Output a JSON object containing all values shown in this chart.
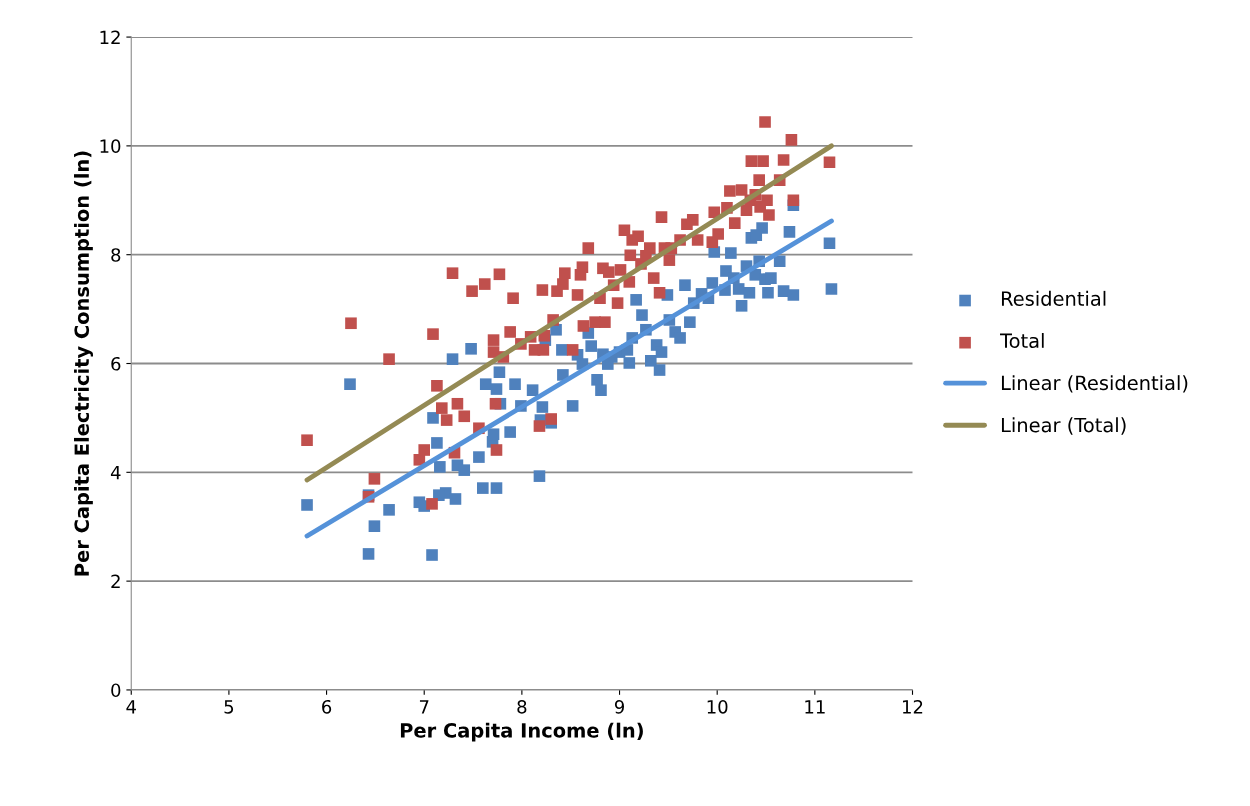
{
  "chart_data": {
    "type": "scatter",
    "xlabel": "Per Capita Income (ln)",
    "ylabel": "Per Capita Electricity Consumption (ln)",
    "xlim": [
      4,
      12
    ],
    "xticks": [
      4,
      5,
      6,
      7,
      8,
      9,
      10,
      11,
      12
    ],
    "ylim": [
      0,
      12
    ],
    "yticks": [
      0,
      2,
      4,
      6,
      8,
      10,
      12
    ],
    "grid": "y",
    "legend": "right",
    "marker": "square",
    "series": [
      {
        "name": "Residential",
        "color": "#4f81bd",
        "x": [
          5.8,
          6.24,
          6.43,
          6.43,
          6.49,
          6.64,
          6.95,
          7.0,
          7.08,
          7.09,
          7.13,
          7.16,
          7.22,
          7.15,
          7.29,
          7.32,
          7.34,
          7.41,
          7.48,
          7.56,
          7.6,
          7.63,
          7.7,
          7.71,
          7.74,
          7.74,
          7.77,
          7.78,
          7.88,
          7.93,
          7.99,
          8.11,
          8.18,
          8.19,
          8.21,
          8.24,
          8.3,
          8.35,
          8.41,
          8.42,
          8.52,
          8.57,
          8.62,
          8.68,
          8.71,
          8.77,
          8.81,
          8.83,
          8.88,
          8.92,
          9.0,
          9.08,
          9.1,
          9.13,
          9.17,
          9.23,
          9.27,
          9.32,
          9.38,
          9.41,
          9.43,
          9.49,
          9.51,
          9.57,
          9.62,
          9.67,
          9.72,
          9.76,
          9.84,
          9.91,
          9.95,
          9.97,
          10.08,
          10.09,
          10.14,
          10.17,
          10.22,
          10.25,
          10.3,
          10.33,
          10.35,
          10.39,
          10.43,
          10.46,
          10.49,
          10.52,
          10.55,
          10.64,
          10.68,
          10.74,
          10.78,
          10.78,
          11.15,
          11.17,
          10.4
        ],
        "values": [
          3.4,
          5.62,
          2.5,
          3.58,
          3.01,
          3.31,
          3.45,
          3.38,
          2.48,
          5.0,
          4.54,
          4.1,
          3.62,
          3.58,
          6.08,
          3.51,
          4.13,
          4.04,
          6.27,
          4.28,
          3.71,
          5.62,
          4.56,
          4.7,
          5.53,
          3.71,
          5.84,
          5.26,
          4.74,
          5.62,
          5.22,
          5.51,
          3.93,
          4.96,
          5.2,
          6.43,
          4.91,
          6.62,
          6.25,
          5.79,
          5.22,
          6.16,
          5.99,
          6.56,
          6.32,
          5.7,
          5.51,
          6.17,
          5.99,
          6.12,
          6.21,
          6.25,
          6.01,
          6.47,
          7.17,
          6.89,
          6.62,
          6.05,
          6.34,
          5.88,
          6.21,
          7.26,
          6.8,
          6.58,
          6.47,
          7.44,
          6.76,
          7.11,
          7.28,
          7.2,
          7.48,
          8.05,
          7.35,
          7.7,
          8.03,
          7.57,
          7.37,
          7.06,
          7.79,
          7.3,
          8.31,
          7.63,
          7.88,
          8.49,
          7.55,
          7.3,
          7.57,
          7.88,
          7.33,
          8.42,
          7.26,
          8.91,
          8.21,
          7.37,
          8.36
        ]
      },
      {
        "name": "Total",
        "color": "#c0504d",
        "x": [
          5.8,
          6.25,
          6.49,
          6.43,
          6.64,
          6.95,
          7.0,
          7.09,
          7.08,
          7.13,
          7.18,
          7.23,
          7.29,
          7.31,
          7.34,
          7.41,
          7.49,
          7.56,
          7.62,
          7.71,
          7.71,
          7.73,
          7.74,
          7.77,
          7.81,
          7.88,
          7.91,
          7.99,
          8.09,
          8.13,
          8.18,
          8.21,
          8.22,
          8.23,
          8.3,
          8.32,
          8.36,
          8.42,
          8.44,
          8.52,
          8.57,
          8.6,
          8.62,
          8.63,
          8.68,
          8.75,
          8.8,
          8.83,
          8.85,
          8.89,
          8.94,
          8.98,
          9.01,
          9.05,
          9.1,
          9.11,
          9.13,
          9.19,
          9.22,
          9.27,
          9.31,
          9.35,
          9.41,
          9.43,
          9.46,
          9.51,
          9.53,
          9.62,
          9.69,
          9.75,
          9.8,
          9.95,
          9.97,
          10.01,
          10.1,
          10.13,
          10.18,
          10.25,
          10.3,
          10.35,
          10.39,
          10.43,
          10.47,
          10.49,
          10.51,
          10.53,
          10.64,
          10.68,
          10.76,
          10.78,
          11.15,
          10.34,
          10.44
        ],
        "values": [
          4.59,
          6.74,
          3.88,
          3.55,
          6.08,
          4.23,
          4.41,
          6.54,
          3.42,
          5.59,
          5.18,
          4.96,
          7.66,
          4.36,
          5.26,
          5.03,
          7.33,
          4.81,
          7.46,
          6.43,
          6.21,
          5.26,
          4.41,
          7.64,
          6.12,
          6.58,
          7.2,
          6.36,
          6.49,
          6.25,
          4.85,
          7.35,
          6.25,
          6.51,
          4.98,
          6.8,
          7.33,
          7.46,
          7.66,
          6.25,
          7.26,
          7.63,
          7.77,
          6.69,
          8.12,
          6.76,
          7.2,
          7.75,
          6.76,
          7.68,
          7.44,
          7.11,
          7.72,
          8.45,
          7.5,
          7.99,
          8.27,
          8.34,
          7.83,
          7.98,
          8.12,
          7.57,
          7.3,
          8.69,
          8.12,
          7.9,
          8.12,
          8.27,
          8.56,
          8.64,
          8.27,
          8.23,
          8.78,
          8.38,
          8.86,
          9.17,
          8.58,
          9.19,
          8.82,
          9.72,
          9.1,
          9.37,
          9.72,
          10.44,
          9.0,
          8.73,
          9.37,
          9.74,
          10.11,
          9.0,
          9.7,
          9.0,
          8.88
        ]
      },
      {
        "name": "Linear (Residential)",
        "type": "line",
        "marker": "none",
        "color": "#5592d9",
        "x": [
          5.8,
          11.17
        ],
        "values": [
          2.83,
          8.62
        ]
      },
      {
        "name": "Linear (Total)",
        "type": "line",
        "marker": "none",
        "color": "#948a54",
        "x": [
          5.8,
          11.17
        ],
        "values": [
          3.86,
          10.0
        ]
      }
    ]
  }
}
